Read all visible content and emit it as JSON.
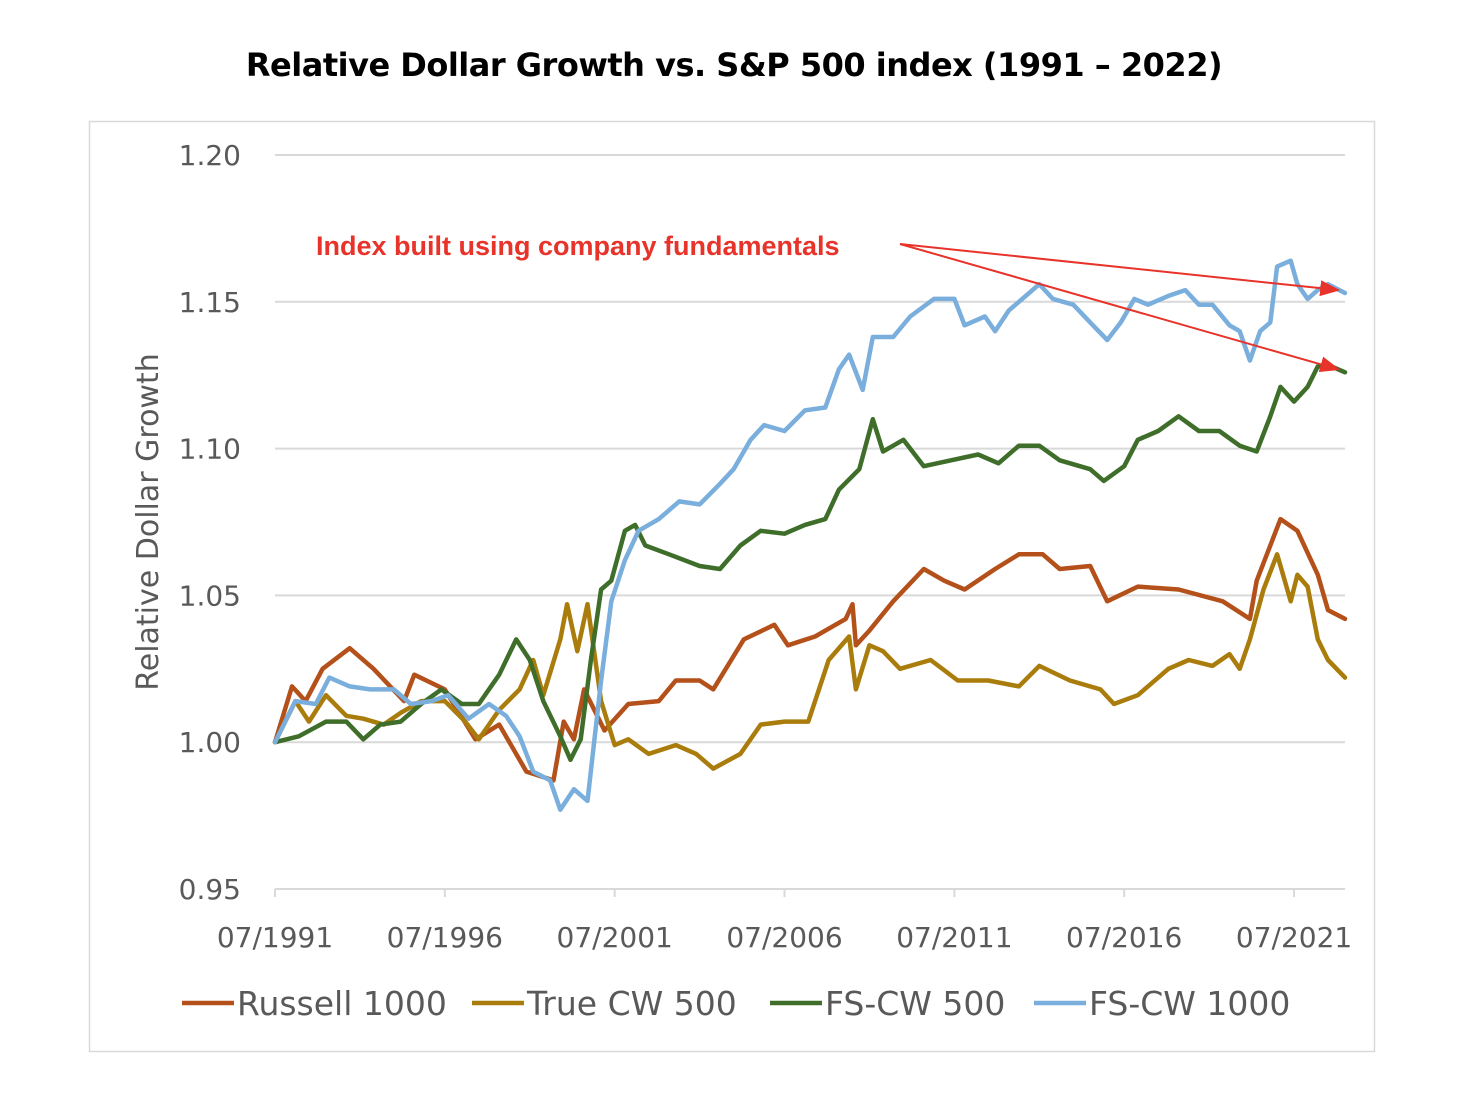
{
  "chart_data": {
    "type": "line",
    "title": "Relative Dollar Growth vs. S&P 500 index (1991 – 2022)",
    "xlabel": "",
    "ylabel": "Relative Dollar Growth",
    "xlim": [
      1991.5,
      2023.0
    ],
    "ylim": [
      0.95,
      1.2
    ],
    "yticks": [
      {
        "v": 0.95,
        "label": "0.95"
      },
      {
        "v": 1.0,
        "label": "1.00"
      },
      {
        "v": 1.05,
        "label": "1.05"
      },
      {
        "v": 1.1,
        "label": "1.10"
      },
      {
        "v": 1.15,
        "label": "1.15"
      },
      {
        "v": 1.2,
        "label": "1.20"
      }
    ],
    "xticks": [
      {
        "v": 1991.5,
        "label": "07/1991"
      },
      {
        "v": 1996.5,
        "label": "07/1996"
      },
      {
        "v": 2001.5,
        "label": "07/2001"
      },
      {
        "v": 2006.5,
        "label": "07/2006"
      },
      {
        "v": 2011.5,
        "label": "07/2011"
      },
      {
        "v": 2016.5,
        "label": "07/2016"
      },
      {
        "v": 2021.5,
        "label": "07/2021"
      }
    ],
    "grid": true,
    "legend_position": "bottom",
    "annotation": {
      "text": "Index built using company fundamentals",
      "color": "#e8332a",
      "targets": [
        [
          2022.8,
          1.154
        ],
        [
          2022.8,
          1.127
        ]
      ]
    },
    "series": [
      {
        "name": "Russell 1000",
        "color": "#b4501a",
        "points": [
          [
            1991.5,
            1.0
          ],
          [
            1992.0,
            1.019
          ],
          [
            1992.4,
            1.014
          ],
          [
            1992.9,
            1.025
          ],
          [
            1993.7,
            1.032
          ],
          [
            1994.4,
            1.025
          ],
          [
            1995.3,
            1.014
          ],
          [
            1995.6,
            1.023
          ],
          [
            1996.5,
            1.018
          ],
          [
            1997.4,
            1.001
          ],
          [
            1998.1,
            1.006
          ],
          [
            1998.9,
            0.99
          ],
          [
            1999.7,
            0.987
          ],
          [
            2000.0,
            1.007
          ],
          [
            2000.3,
            1.001
          ],
          [
            2000.6,
            1.018
          ],
          [
            2001.2,
            1.004
          ],
          [
            2001.9,
            1.013
          ],
          [
            2002.8,
            1.014
          ],
          [
            2003.3,
            1.021
          ],
          [
            2004.0,
            1.021
          ],
          [
            2004.4,
            1.018
          ],
          [
            2005.3,
            1.035
          ],
          [
            2006.2,
            1.04
          ],
          [
            2006.6,
            1.033
          ],
          [
            2007.4,
            1.036
          ],
          [
            2008.3,
            1.042
          ],
          [
            2008.5,
            1.047
          ],
          [
            2008.6,
            1.033
          ],
          [
            2009.0,
            1.038
          ],
          [
            2009.7,
            1.048
          ],
          [
            2010.6,
            1.059
          ],
          [
            2011.2,
            1.055
          ],
          [
            2011.8,
            1.052
          ],
          [
            2012.7,
            1.059
          ],
          [
            2013.4,
            1.064
          ],
          [
            2014.1,
            1.064
          ],
          [
            2014.6,
            1.059
          ],
          [
            2015.5,
            1.06
          ],
          [
            2016.0,
            1.048
          ],
          [
            2016.9,
            1.053
          ],
          [
            2018.1,
            1.052
          ],
          [
            2019.4,
            1.048
          ],
          [
            2020.2,
            1.042
          ],
          [
            2020.4,
            1.055
          ],
          [
            2021.1,
            1.076
          ],
          [
            2021.6,
            1.072
          ],
          [
            2022.2,
            1.057
          ],
          [
            2022.5,
            1.045
          ],
          [
            2023.0,
            1.042
          ]
        ]
      },
      {
        "name": "True CW 500",
        "color": "#a97c0c",
        "points": [
          [
            1991.5,
            1.0
          ],
          [
            1992.1,
            1.014
          ],
          [
            1992.5,
            1.007
          ],
          [
            1993.0,
            1.016
          ],
          [
            1993.6,
            1.009
          ],
          [
            1994.1,
            1.008
          ],
          [
            1994.7,
            1.006
          ],
          [
            1995.2,
            1.01
          ],
          [
            1995.8,
            1.014
          ],
          [
            1996.5,
            1.014
          ],
          [
            1997.1,
            1.007
          ],
          [
            1997.5,
            1.001
          ],
          [
            1998.1,
            1.011
          ],
          [
            1998.7,
            1.018
          ],
          [
            1999.1,
            1.028
          ],
          [
            1999.4,
            1.016
          ],
          [
            1999.9,
            1.035
          ],
          [
            2000.1,
            1.047
          ],
          [
            2000.4,
            1.031
          ],
          [
            2000.7,
            1.047
          ],
          [
            2001.1,
            1.014
          ],
          [
            2001.5,
            0.999
          ],
          [
            2001.9,
            1.001
          ],
          [
            2002.5,
            0.996
          ],
          [
            2003.3,
            0.999
          ],
          [
            2003.9,
            0.996
          ],
          [
            2004.4,
            0.991
          ],
          [
            2005.2,
            0.996
          ],
          [
            2005.8,
            1.006
          ],
          [
            2006.5,
            1.007
          ],
          [
            2007.2,
            1.007
          ],
          [
            2007.8,
            1.028
          ],
          [
            2008.4,
            1.036
          ],
          [
            2008.6,
            1.018
          ],
          [
            2009.0,
            1.033
          ],
          [
            2009.4,
            1.031
          ],
          [
            2009.9,
            1.025
          ],
          [
            2010.8,
            1.028
          ],
          [
            2011.6,
            1.021
          ],
          [
            2012.5,
            1.021
          ],
          [
            2013.4,
            1.019
          ],
          [
            2014.0,
            1.026
          ],
          [
            2014.9,
            1.021
          ],
          [
            2015.8,
            1.018
          ],
          [
            2016.2,
            1.013
          ],
          [
            2016.9,
            1.016
          ],
          [
            2017.8,
            1.025
          ],
          [
            2018.4,
            1.028
          ],
          [
            2019.1,
            1.026
          ],
          [
            2019.6,
            1.03
          ],
          [
            2019.9,
            1.025
          ],
          [
            2020.2,
            1.035
          ],
          [
            2020.6,
            1.052
          ],
          [
            2021.0,
            1.064
          ],
          [
            2021.4,
            1.048
          ],
          [
            2021.6,
            1.057
          ],
          [
            2021.9,
            1.053
          ],
          [
            2022.2,
            1.035
          ],
          [
            2022.5,
            1.028
          ],
          [
            2023.0,
            1.022
          ]
        ]
      },
      {
        "name": "FS-CW 500",
        "color": "#3e6e2a",
        "points": [
          [
            1991.5,
            1.0
          ],
          [
            1992.2,
            1.002
          ],
          [
            1993.0,
            1.007
          ],
          [
            1993.6,
            1.007
          ],
          [
            1994.1,
            1.001
          ],
          [
            1994.6,
            1.006
          ],
          [
            1995.2,
            1.007
          ],
          [
            1995.8,
            1.013
          ],
          [
            1996.4,
            1.018
          ],
          [
            1997.0,
            1.013
          ],
          [
            1997.5,
            1.013
          ],
          [
            1998.1,
            1.023
          ],
          [
            1998.6,
            1.035
          ],
          [
            1999.0,
            1.028
          ],
          [
            1999.4,
            1.014
          ],
          [
            1999.9,
            1.002
          ],
          [
            2000.2,
            0.994
          ],
          [
            2000.5,
            1.001
          ],
          [
            2000.8,
            1.028
          ],
          [
            2001.1,
            1.052
          ],
          [
            2001.4,
            1.055
          ],
          [
            2001.8,
            1.072
          ],
          [
            2002.1,
            1.074
          ],
          [
            2002.4,
            1.067
          ],
          [
            2003.1,
            1.064
          ],
          [
            2004.0,
            1.06
          ],
          [
            2004.6,
            1.059
          ],
          [
            2005.2,
            1.067
          ],
          [
            2005.8,
            1.072
          ],
          [
            2006.5,
            1.071
          ],
          [
            2007.1,
            1.074
          ],
          [
            2007.7,
            1.076
          ],
          [
            2008.1,
            1.086
          ],
          [
            2008.7,
            1.093
          ],
          [
            2009.1,
            1.11
          ],
          [
            2009.4,
            1.099
          ],
          [
            2010.0,
            1.103
          ],
          [
            2010.6,
            1.094
          ],
          [
            2011.4,
            1.096
          ],
          [
            2012.2,
            1.098
          ],
          [
            2012.8,
            1.095
          ],
          [
            2013.4,
            1.101
          ],
          [
            2014.0,
            1.101
          ],
          [
            2014.6,
            1.096
          ],
          [
            2015.5,
            1.093
          ],
          [
            2015.9,
            1.089
          ],
          [
            2016.5,
            1.094
          ],
          [
            2016.9,
            1.103
          ],
          [
            2017.5,
            1.106
          ],
          [
            2018.1,
            1.111
          ],
          [
            2018.7,
            1.106
          ],
          [
            2019.3,
            1.106
          ],
          [
            2019.9,
            1.101
          ],
          [
            2020.4,
            1.099
          ],
          [
            2020.8,
            1.111
          ],
          [
            2021.1,
            1.121
          ],
          [
            2021.5,
            1.116
          ],
          [
            2021.9,
            1.121
          ],
          [
            2022.2,
            1.128
          ],
          [
            2022.6,
            1.128
          ],
          [
            2023.0,
            1.126
          ]
        ]
      },
      {
        "name": "FS-CW 1000",
        "color": "#7aaedc",
        "points": [
          [
            1991.5,
            1.0
          ],
          [
            1992.1,
            1.014
          ],
          [
            1992.7,
            1.013
          ],
          [
            1993.1,
            1.022
          ],
          [
            1993.7,
            1.019
          ],
          [
            1994.3,
            1.018
          ],
          [
            1995.0,
            1.018
          ],
          [
            1995.5,
            1.013
          ],
          [
            1996.1,
            1.014
          ],
          [
            1996.6,
            1.016
          ],
          [
            1997.2,
            1.008
          ],
          [
            1997.8,
            1.013
          ],
          [
            1998.3,
            1.009
          ],
          [
            1998.7,
            1.002
          ],
          [
            1999.1,
            0.99
          ],
          [
            1999.6,
            0.987
          ],
          [
            1999.9,
            0.977
          ],
          [
            2000.3,
            0.984
          ],
          [
            2000.7,
            0.98
          ],
          [
            2001.1,
            1.021
          ],
          [
            2001.4,
            1.048
          ],
          [
            2001.8,
            1.062
          ],
          [
            2002.2,
            1.072
          ],
          [
            2002.8,
            1.076
          ],
          [
            2003.4,
            1.082
          ],
          [
            2004.0,
            1.081
          ],
          [
            2004.6,
            1.088
          ],
          [
            2005.0,
            1.093
          ],
          [
            2005.5,
            1.103
          ],
          [
            2005.9,
            1.108
          ],
          [
            2006.5,
            1.106
          ],
          [
            2007.1,
            1.113
          ],
          [
            2007.7,
            1.114
          ],
          [
            2008.1,
            1.127
          ],
          [
            2008.4,
            1.132
          ],
          [
            2008.8,
            1.12
          ],
          [
            2009.1,
            1.138
          ],
          [
            2009.7,
            1.138
          ],
          [
            2010.2,
            1.145
          ],
          [
            2010.9,
            1.151
          ],
          [
            2011.5,
            1.151
          ],
          [
            2011.8,
            1.142
          ],
          [
            2012.4,
            1.145
          ],
          [
            2012.7,
            1.14
          ],
          [
            2013.1,
            1.147
          ],
          [
            2013.6,
            1.152
          ],
          [
            2014.0,
            1.156
          ],
          [
            2014.4,
            1.151
          ],
          [
            2015.0,
            1.149
          ],
          [
            2015.5,
            1.143
          ],
          [
            2016.0,
            1.137
          ],
          [
            2016.4,
            1.143
          ],
          [
            2016.8,
            1.151
          ],
          [
            2017.2,
            1.149
          ],
          [
            2017.8,
            1.152
          ],
          [
            2018.3,
            1.154
          ],
          [
            2018.7,
            1.149
          ],
          [
            2019.1,
            1.149
          ],
          [
            2019.6,
            1.142
          ],
          [
            2019.9,
            1.14
          ],
          [
            2020.2,
            1.13
          ],
          [
            2020.5,
            1.14
          ],
          [
            2020.8,
            1.143
          ],
          [
            2021.0,
            1.162
          ],
          [
            2021.4,
            1.164
          ],
          [
            2021.6,
            1.156
          ],
          [
            2021.9,
            1.151
          ],
          [
            2022.2,
            1.154
          ],
          [
            2022.5,
            1.156
          ],
          [
            2023.0,
            1.153
          ]
        ]
      }
    ]
  }
}
